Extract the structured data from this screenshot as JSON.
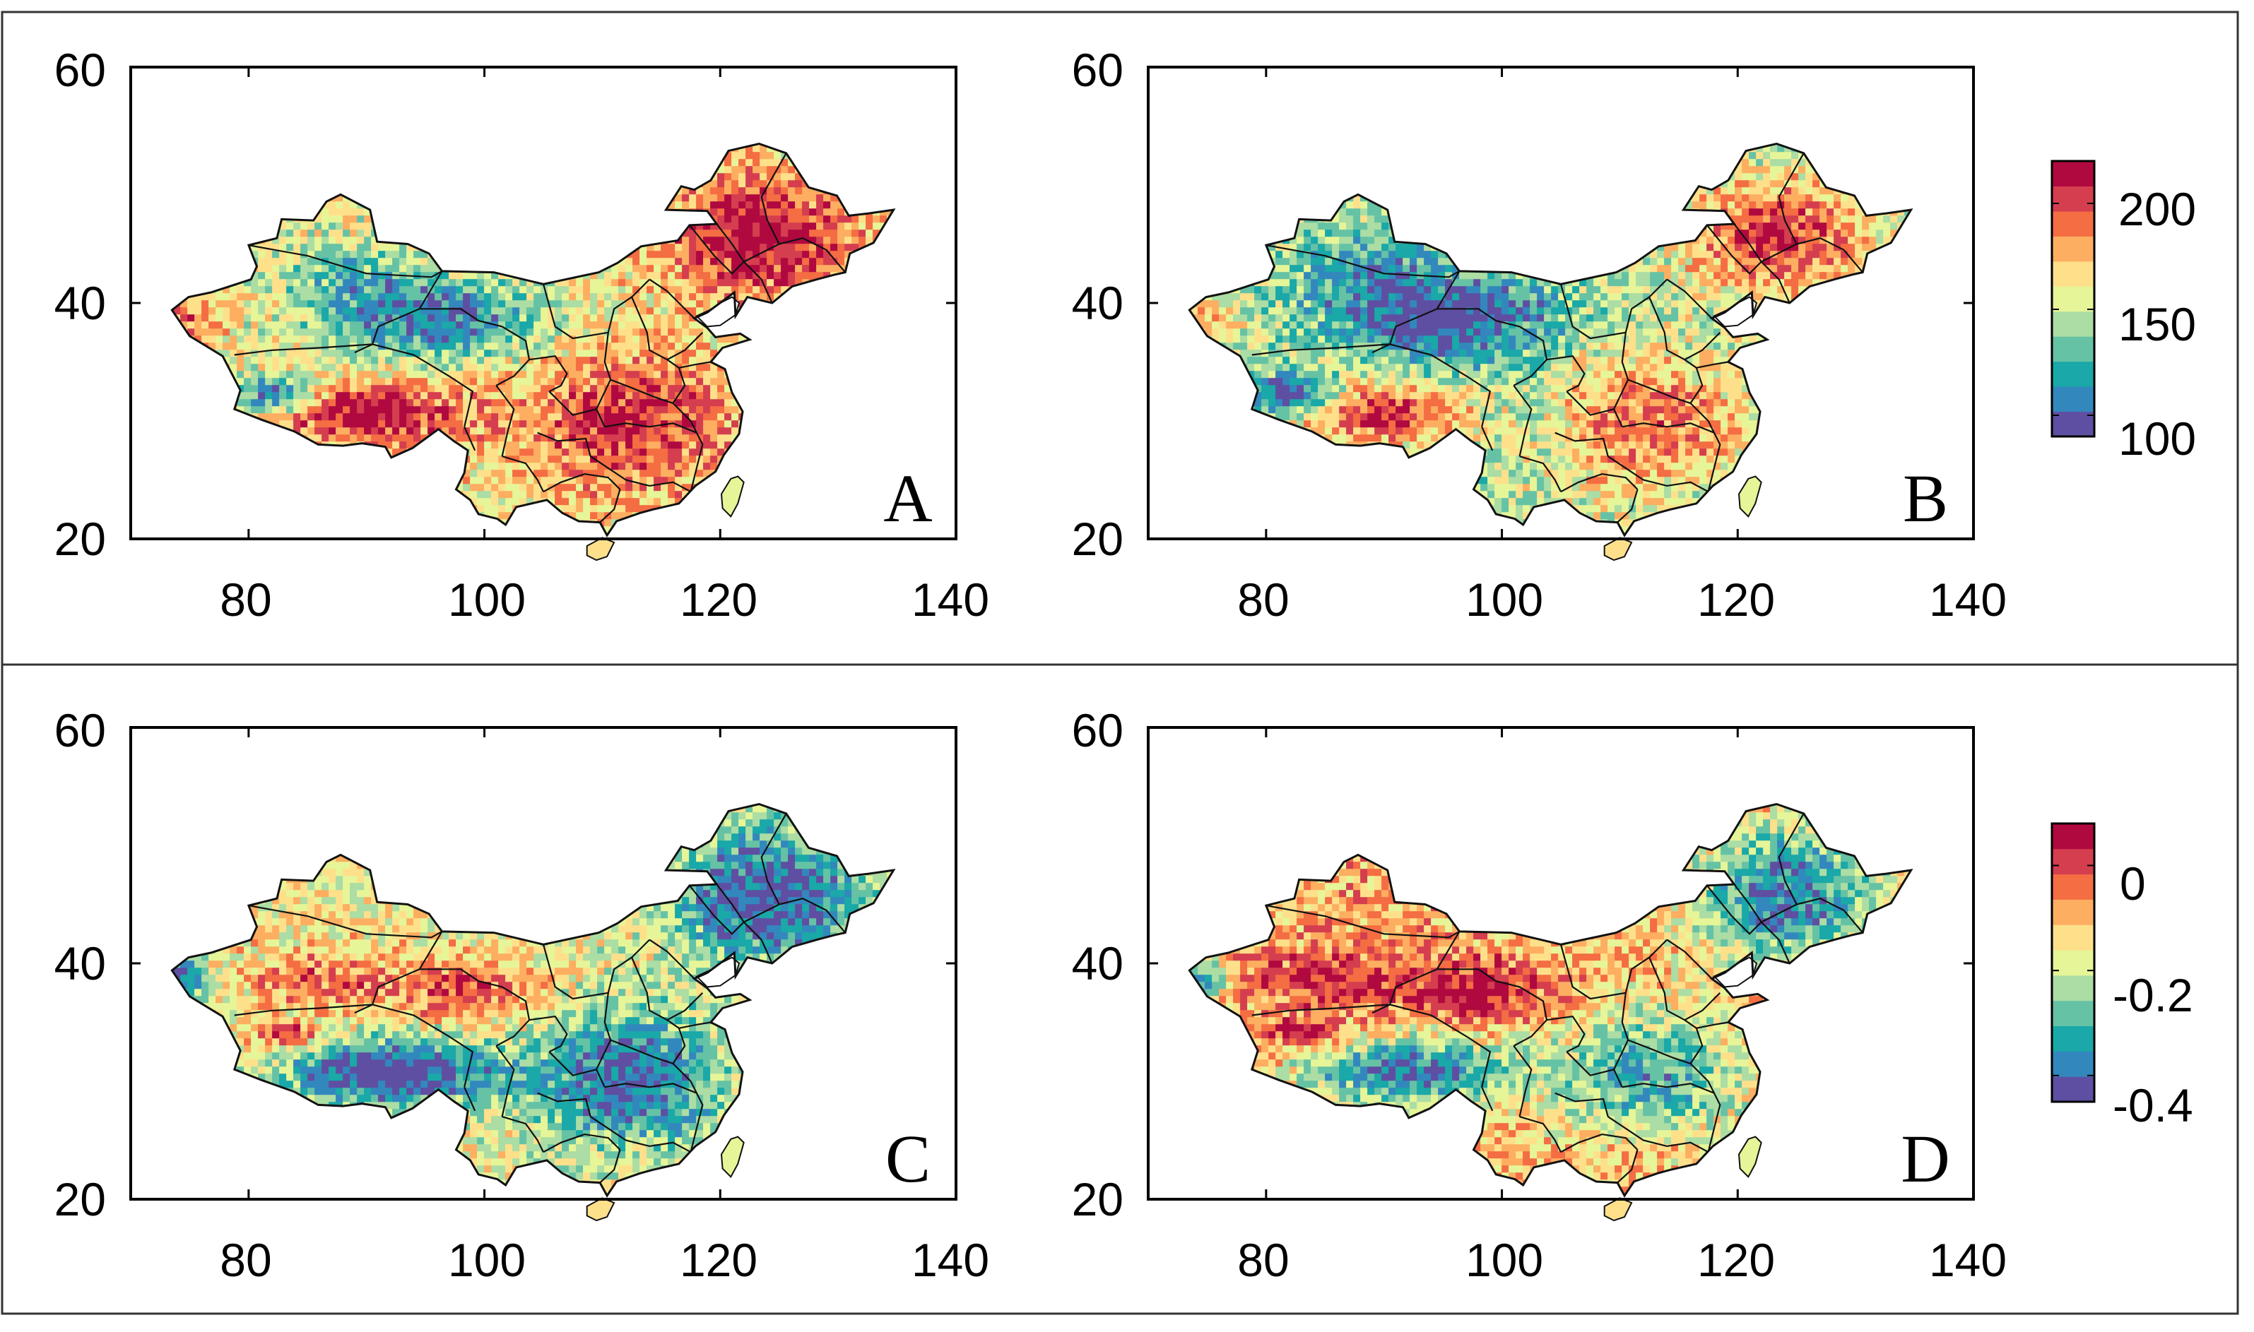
{
  "colormap": [
    "#5e4fa2",
    "#3288bd",
    "#1aa8a8",
    "#66c2a5",
    "#abdda4",
    "#e6f598",
    "#fee08b",
    "#fdae61",
    "#f46d43",
    "#d53e4f",
    "#b0093f"
  ],
  "ocean_color": "#ffffff",
  "border_color": "#111111",
  "panels": [
    {
      "letter": "A",
      "x_ticks": [
        "80",
        "100",
        "120",
        "140"
      ],
      "y_ticks": [
        "20",
        "40",
        "60"
      ],
      "field": "a"
    },
    {
      "letter": "B",
      "x_ticks": [
        "80",
        "100",
        "120",
        "140"
      ],
      "y_ticks": [
        "20",
        "40",
        "60"
      ],
      "field": "b"
    },
    {
      "letter": "C",
      "x_ticks": [
        "80",
        "100",
        "120",
        "140"
      ],
      "y_ticks": [
        "20",
        "40",
        "60"
      ],
      "field": "c"
    },
    {
      "letter": "D",
      "x_ticks": [
        "80",
        "100",
        "120",
        "140"
      ],
      "y_ticks": [
        "20",
        "40",
        "60"
      ],
      "field": "d"
    }
  ],
  "colorbars": [
    {
      "ticks": [
        "200",
        "150",
        "100"
      ],
      "range": [
        90,
        220
      ],
      "tick_values": [
        200,
        150,
        100
      ]
    },
    {
      "ticks": [
        "0",
        "-0.2",
        "-0.4"
      ],
      "range": [
        -0.45,
        0.08
      ],
      "tick_values": [
        0,
        -0.2,
        -0.4
      ]
    }
  ]
}
